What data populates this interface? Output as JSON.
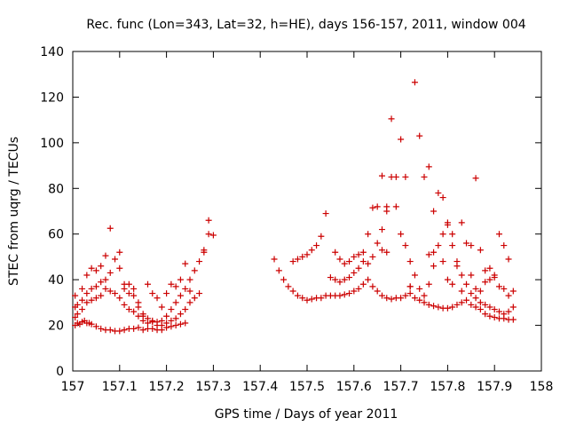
{
  "chart_data": {
    "type": "scatter",
    "title": "Rec. func (Lon=343, Lat=32, h=HE), days 156-157, 2011, window 004",
    "xlabel": "GPS time / Days of year 2011",
    "ylabel": "STEC from uqrg / TECUs",
    "xlim": [
      157,
      158
    ],
    "ylim": [
      0,
      140
    ],
    "x_ticks": [
      "157",
      "157.1",
      "157.2",
      "157.3",
      "157.4",
      "157.5",
      "157.6",
      "157.7",
      "157.8",
      "157.9",
      "158"
    ],
    "y_ticks": [
      "0",
      "20",
      "40",
      "60",
      "80",
      "100",
      "120",
      "140"
    ],
    "marker": "+",
    "marker_color": "#cc0000",
    "grid": false,
    "points": [
      [
        157.005,
        20
      ],
      [
        157.01,
        21
      ],
      [
        157.015,
        20.5
      ],
      [
        157.02,
        21.5
      ],
      [
        157.025,
        22
      ],
      [
        157.03,
        21
      ],
      [
        157.035,
        21
      ],
      [
        157.04,
        20.5
      ],
      [
        157.05,
        19.5
      ],
      [
        157.06,
        18.5
      ],
      [
        157.07,
        18
      ],
      [
        157.08,
        18
      ],
      [
        157.09,
        17.5
      ],
      [
        157.1,
        17.5
      ],
      [
        157.11,
        18
      ],
      [
        157.12,
        18.5
      ],
      [
        157.13,
        18.5
      ],
      [
        157.14,
        19
      ],
      [
        157.15,
        18
      ],
      [
        157.16,
        18.5
      ],
      [
        157.17,
        18.5
      ],
      [
        157.18,
        18
      ],
      [
        157.19,
        18
      ],
      [
        157.2,
        19
      ],
      [
        157.21,
        19.5
      ],
      [
        157.22,
        20
      ],
      [
        157.23,
        20.5
      ],
      [
        157.24,
        21
      ],
      [
        157.005,
        23.5
      ],
      [
        157.01,
        25
      ],
      [
        157.02,
        27
      ],
      [
        157.03,
        30
      ],
      [
        157.04,
        31
      ],
      [
        157.05,
        32
      ],
      [
        157.06,
        33
      ],
      [
        157.07,
        36
      ],
      [
        157.08,
        35
      ],
      [
        157.09,
        34
      ],
      [
        157.1,
        32
      ],
      [
        157.11,
        29
      ],
      [
        157.12,
        27
      ],
      [
        157.13,
        26
      ],
      [
        157.14,
        24
      ],
      [
        157.15,
        22
      ],
      [
        157.16,
        21
      ],
      [
        157.17,
        21.5
      ],
      [
        157.18,
        20
      ],
      [
        157.19,
        20
      ],
      [
        157.2,
        21
      ],
      [
        157.21,
        22
      ],
      [
        157.22,
        23
      ],
      [
        157.23,
        25
      ],
      [
        157.24,
        27
      ],
      [
        157.25,
        30
      ],
      [
        157.26,
        32
      ],
      [
        157.005,
        28
      ],
      [
        157.01,
        29
      ],
      [
        157.02,
        31
      ],
      [
        157.03,
        34
      ],
      [
        157.04,
        36
      ],
      [
        157.05,
        37
      ],
      [
        157.06,
        39
      ],
      [
        157.07,
        40
      ],
      [
        157.08,
        43
      ],
      [
        157.09,
        49
      ],
      [
        157.1,
        45
      ],
      [
        157.11,
        38
      ],
      [
        157.12,
        34
      ],
      [
        157.13,
        33
      ],
      [
        157.14,
        28
      ],
      [
        157.15,
        25
      ],
      [
        157.16,
        23
      ],
      [
        157.17,
        22
      ],
      [
        157.18,
        21.5
      ],
      [
        157.19,
        22
      ],
      [
        157.2,
        24
      ],
      [
        157.21,
        27
      ],
      [
        157.22,
        30
      ],
      [
        157.23,
        33
      ],
      [
        157.24,
        36
      ],
      [
        157.25,
        40
      ],
      [
        157.26,
        44
      ],
      [
        157.27,
        48
      ],
      [
        157.28,
        52
      ],
      [
        157.29,
        60
      ],
      [
        157.005,
        33
      ],
      [
        157.02,
        36
      ],
      [
        157.03,
        42
      ],
      [
        157.04,
        45
      ],
      [
        157.05,
        44
      ],
      [
        157.06,
        46
      ],
      [
        157.07,
        50.5
      ],
      [
        157.08,
        62.5
      ],
      [
        157.1,
        52
      ],
      [
        157.11,
        36
      ],
      [
        157.12,
        38
      ],
      [
        157.13,
        36
      ],
      [
        157.14,
        30
      ],
      [
        157.15,
        24
      ],
      [
        157.16,
        38
      ],
      [
        157.17,
        34
      ],
      [
        157.18,
        32
      ],
      [
        157.19,
        28
      ],
      [
        157.2,
        34
      ],
      [
        157.21,
        38
      ],
      [
        157.22,
        37
      ],
      [
        157.23,
        40
      ],
      [
        157.24,
        47
      ],
      [
        157.25,
        35
      ],
      [
        157.27,
        34
      ],
      [
        157.28,
        53
      ],
      [
        157.29,
        66
      ],
      [
        157.3,
        59.5
      ],
      [
        157.43,
        49
      ],
      [
        157.44,
        44
      ],
      [
        157.45,
        40
      ],
      [
        157.46,
        37
      ],
      [
        157.47,
        35
      ],
      [
        157.48,
        33
      ],
      [
        157.49,
        32
      ],
      [
        157.5,
        31
      ],
      [
        157.51,
        31.5
      ],
      [
        157.52,
        32
      ],
      [
        157.53,
        32
      ],
      [
        157.54,
        33
      ],
      [
        157.55,
        33
      ],
      [
        157.56,
        33
      ],
      [
        157.57,
        33
      ],
      [
        157.58,
        33.5
      ],
      [
        157.59,
        34
      ],
      [
        157.6,
        35
      ],
      [
        157.61,
        36
      ],
      [
        157.62,
        38
      ],
      [
        157.63,
        40
      ],
      [
        157.64,
        37
      ],
      [
        157.65,
        35
      ],
      [
        157.66,
        33
      ],
      [
        157.67,
        32
      ],
      [
        157.68,
        31.5
      ],
      [
        157.69,
        32
      ],
      [
        157.7,
        32
      ],
      [
        157.71,
        33
      ],
      [
        157.72,
        34
      ],
      [
        157.73,
        32
      ],
      [
        157.74,
        31
      ],
      [
        157.75,
        30
      ],
      [
        157.76,
        29
      ],
      [
        157.77,
        28.5
      ],
      [
        157.78,
        28
      ],
      [
        157.79,
        27.5
      ],
      [
        157.8,
        27.5
      ],
      [
        157.81,
        28
      ],
      [
        157.82,
        29
      ],
      [
        157.83,
        30
      ],
      [
        157.84,
        31
      ],
      [
        157.85,
        29
      ],
      [
        157.86,
        28
      ],
      [
        157.87,
        27
      ],
      [
        157.88,
        25
      ],
      [
        157.89,
        24
      ],
      [
        157.9,
        23.5
      ],
      [
        157.91,
        23
      ],
      [
        157.92,
        23
      ],
      [
        157.93,
        22.5
      ],
      [
        157.94,
        22.5
      ],
      [
        157.47,
        48
      ],
      [
        157.48,
        49
      ],
      [
        157.49,
        50
      ],
      [
        157.5,
        51
      ],
      [
        157.51,
        53
      ],
      [
        157.52,
        55
      ],
      [
        157.53,
        59
      ],
      [
        157.54,
        69
      ],
      [
        157.55,
        41
      ],
      [
        157.56,
        40
      ],
      [
        157.57,
        39
      ],
      [
        157.58,
        40
      ],
      [
        157.59,
        41
      ],
      [
        157.6,
        43
      ],
      [
        157.61,
        45
      ],
      [
        157.62,
        48
      ],
      [
        157.63,
        47
      ],
      [
        157.64,
        50
      ],
      [
        157.65,
        56
      ],
      [
        157.66,
        62
      ],
      [
        157.67,
        70
      ],
      [
        157.68,
        85
      ],
      [
        157.69,
        72
      ],
      [
        157.7,
        60
      ],
      [
        157.71,
        55
      ],
      [
        157.72,
        48
      ],
      [
        157.73,
        42
      ],
      [
        157.74,
        36
      ],
      [
        157.75,
        33
      ],
      [
        157.76,
        38
      ],
      [
        157.77,
        46
      ],
      [
        157.78,
        55
      ],
      [
        157.79,
        60
      ],
      [
        157.8,
        64
      ],
      [
        157.81,
        55
      ],
      [
        157.82,
        48
      ],
      [
        157.83,
        42
      ],
      [
        157.84,
        38
      ],
      [
        157.85,
        34
      ],
      [
        157.86,
        32
      ],
      [
        157.87,
        30
      ],
      [
        157.88,
        29
      ],
      [
        157.89,
        28
      ],
      [
        157.9,
        27
      ],
      [
        157.91,
        26
      ],
      [
        157.92,
        25
      ],
      [
        157.93,
        26
      ],
      [
        157.94,
        28
      ],
      [
        157.56,
        52
      ],
      [
        157.57,
        49
      ],
      [
        157.58,
        47
      ],
      [
        157.59,
        48
      ],
      [
        157.6,
        50
      ],
      [
        157.61,
        51
      ],
      [
        157.62,
        52
      ],
      [
        157.63,
        60
      ],
      [
        157.64,
        71.5
      ],
      [
        157.65,
        72
      ],
      [
        157.66,
        85.5
      ],
      [
        157.67,
        72
      ],
      [
        157.68,
        110.5
      ],
      [
        157.69,
        85
      ],
      [
        157.7,
        101.5
      ],
      [
        157.71,
        85
      ],
      [
        157.72,
        37
      ],
      [
        157.73,
        126.5
      ],
      [
        157.74,
        103
      ],
      [
        157.75,
        85
      ],
      [
        157.76,
        89.5
      ],
      [
        157.77,
        70
      ],
      [
        157.78,
        78
      ],
      [
        157.79,
        76
      ],
      [
        157.8,
        65
      ],
      [
        157.81,
        60
      ],
      [
        157.82,
        46
      ],
      [
        157.83,
        65
      ],
      [
        157.84,
        56
      ],
      [
        157.85,
        55
      ],
      [
        157.86,
        84.5
      ],
      [
        157.87,
        53
      ],
      [
        157.88,
        39
      ],
      [
        157.89,
        45
      ],
      [
        157.9,
        42
      ],
      [
        157.91,
        60
      ],
      [
        157.92,
        55
      ],
      [
        157.93,
        49
      ],
      [
        157.94,
        35
      ],
      [
        157.66,
        53
      ],
      [
        157.67,
        52
      ],
      [
        157.72,
        37
      ],
      [
        157.76,
        51
      ],
      [
        157.77,
        52
      ],
      [
        157.79,
        48
      ],
      [
        157.8,
        40
      ],
      [
        157.81,
        38
      ],
      [
        157.83,
        35
      ],
      [
        157.85,
        42
      ],
      [
        157.86,
        36
      ],
      [
        157.87,
        35
      ],
      [
        157.88,
        44
      ],
      [
        157.89,
        40
      ],
      [
        157.9,
        41
      ],
      [
        157.91,
        37
      ],
      [
        157.92,
        36
      ],
      [
        157.93,
        33
      ]
    ]
  }
}
